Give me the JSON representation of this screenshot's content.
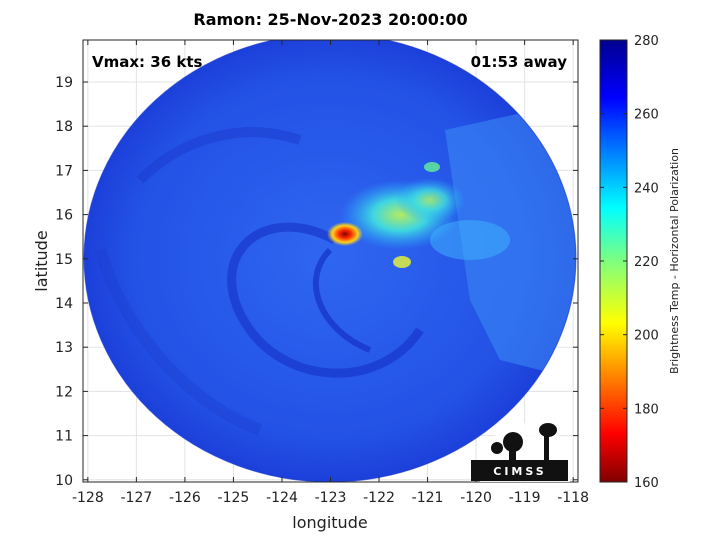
{
  "title": "Ramon: 25-Nov-2023 20:00:00",
  "vmax_text": "Vmax: 36 kts",
  "away_text": "01:53 away",
  "chart_data": {
    "type": "heatmap",
    "title": "Ramon: 25-Nov-2023 20:00:00",
    "xlabel": "longitude",
    "ylabel": "latitude",
    "xlim": [
      -128.1,
      -117.9
    ],
    "ylim": [
      9.95,
      19.95
    ],
    "x_ticks": [
      -128,
      -127,
      -126,
      -125,
      -124,
      -123,
      -122,
      -121,
      -120,
      -119,
      -118
    ],
    "y_ticks": [
      10,
      11,
      12,
      13,
      14,
      15,
      16,
      17,
      18,
      19
    ],
    "grid": true,
    "storm_center": {
      "lon": -122.85,
      "lat": 15.5
    },
    "colorbar": {
      "label": "Brightness Temp - Horizontal Polarization",
      "range": [
        160,
        280
      ],
      "ticks": [
        160,
        180,
        200,
        220,
        240,
        260,
        280
      ],
      "colormap": "jet"
    }
  },
  "logo": {
    "text": "CIMSS"
  }
}
